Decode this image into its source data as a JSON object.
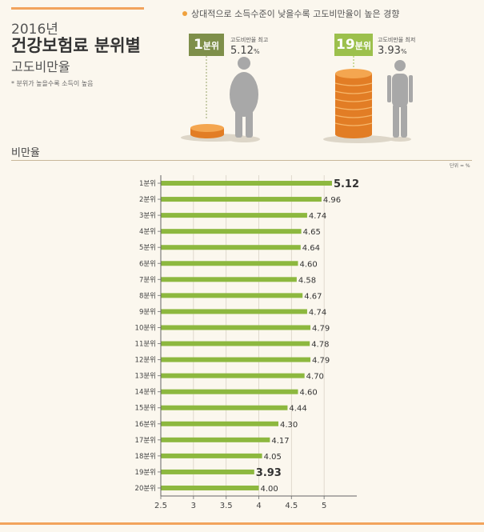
{
  "header": {
    "year": "2016년",
    "title": "건강보험료 분위별",
    "subtitle": "고도비만율",
    "note": "* 분위가 높을수록 소득이 높음",
    "trend": "상대적으로 소득수준이 낮을수록 고도비만율이 높은 경향"
  },
  "highlight": {
    "top": {
      "rank_num": "1",
      "rank_unit": "분위",
      "label": "고도비만율 최고",
      "value": "5.12",
      "pct": "%"
    },
    "low": {
      "rank_num": "19",
      "rank_unit": "분위",
      "label": "고도비만율 최저",
      "value": "3.93",
      "pct": "%"
    }
  },
  "section": {
    "title": "비만율",
    "unit": "단위 = %"
  },
  "colors": {
    "bar": "#8db83f",
    "accent": "#f2a35c",
    "badge_top": "#7e8f4a",
    "badge_low": "#9cc04c"
  },
  "chart_data": {
    "type": "bar",
    "orientation": "horizontal",
    "title": "비만율",
    "unit": "%",
    "categories": [
      "1분위",
      "2분위",
      "3분위",
      "4분위",
      "5분위",
      "6분위",
      "7분위",
      "8분위",
      "9분위",
      "10분위",
      "11분위",
      "12분위",
      "13분위",
      "14분위",
      "15분위",
      "16분위",
      "17분위",
      "18분위",
      "19분위",
      "20분위"
    ],
    "values": [
      5.12,
      4.96,
      4.74,
      4.65,
      4.64,
      4.6,
      4.58,
      4.67,
      4.74,
      4.79,
      4.78,
      4.79,
      4.7,
      4.6,
      4.44,
      4.3,
      4.17,
      4.05,
      3.93,
      4.0
    ],
    "value_labels": [
      "5.12",
      "4.96",
      "4.74",
      "4.65",
      "4.64",
      "4.60",
      "4.58",
      "4.67",
      "4.74",
      "4.79",
      "4.78",
      "4.79",
      "4.70",
      "4.60",
      "4.44",
      "4.30",
      "4.17",
      "4.05",
      "3.93",
      "4.00"
    ],
    "emphasized": [
      0,
      18
    ],
    "xlim": [
      2.5,
      5.5
    ],
    "xticks": [
      2.5,
      3,
      3.5,
      4,
      4.5,
      5
    ],
    "xtick_labels": [
      "2.5",
      "3",
      "3.5",
      "4",
      "4.5",
      "5"
    ],
    "grid": true
  }
}
